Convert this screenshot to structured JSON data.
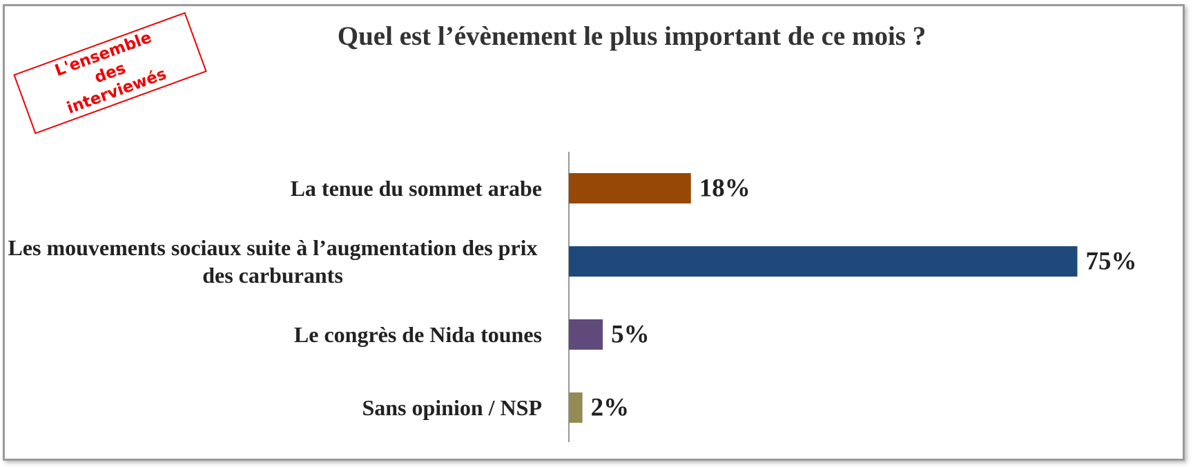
{
  "chart_data": {
    "type": "barh",
    "title": "Quel est l’évènement le plus important de ce mois ?",
    "annotation": "L'ensemble des interviewés",
    "categories": [
      "La tenue du sommet arabe",
      "Les mouvements sociaux suite à l’augmentation des prix des carburants",
      "Le congrès de Nida tounes",
      "Sans opinion / NSP"
    ],
    "values": [
      18,
      75,
      5,
      2
    ],
    "value_labels": [
      "18%",
      "75%",
      "5%",
      "2%"
    ],
    "colors": [
      "#974706",
      "#1f497d",
      "#604a7b",
      "#948a54"
    ]
  }
}
